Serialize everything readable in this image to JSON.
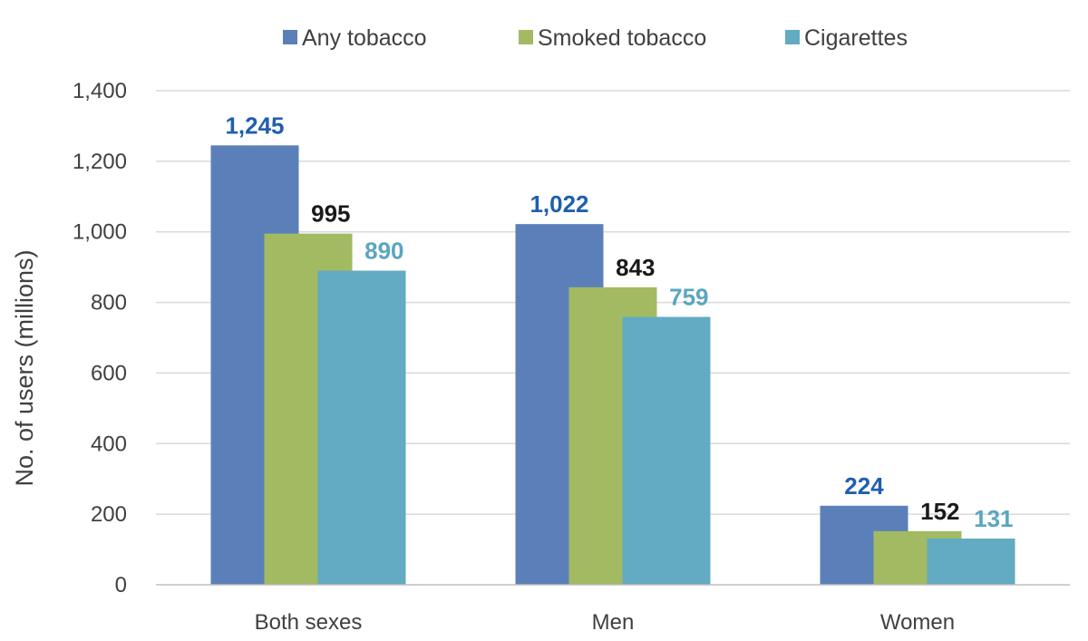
{
  "chart_data": {
    "type": "bar",
    "title": "",
    "xlabel": "",
    "ylabel": "No. of users (millions)",
    "ylim": [
      0,
      1400
    ],
    "yticks": [
      0,
      200,
      400,
      600,
      800,
      1000,
      1200,
      1400
    ],
    "ytick_labels": [
      "0",
      "200",
      "400",
      "600",
      "800",
      "1,000",
      "1,200",
      "1,400"
    ],
    "grid": true,
    "legend_position": "top-center",
    "categories": [
      "Both sexes",
      "Men",
      "Women"
    ],
    "series": [
      {
        "name": "Any tobacco",
        "color": "#5b80b9",
        "label_color": "#1f5fae",
        "values": [
          1245,
          1022,
          224
        ],
        "labels": [
          "1,245",
          "1,022",
          "224"
        ]
      },
      {
        "name": "Smoked tobacco",
        "color": "#a2ba62",
        "label_color": "#1a1a1a",
        "values": [
          995,
          843,
          152
        ],
        "labels": [
          "995",
          "843",
          "152"
        ]
      },
      {
        "name": "Cigarettes",
        "color": "#62abc3",
        "label_color": "#5aa6c0",
        "values": [
          890,
          759,
          131
        ],
        "labels": [
          "890",
          "759",
          "131"
        ]
      }
    ]
  }
}
